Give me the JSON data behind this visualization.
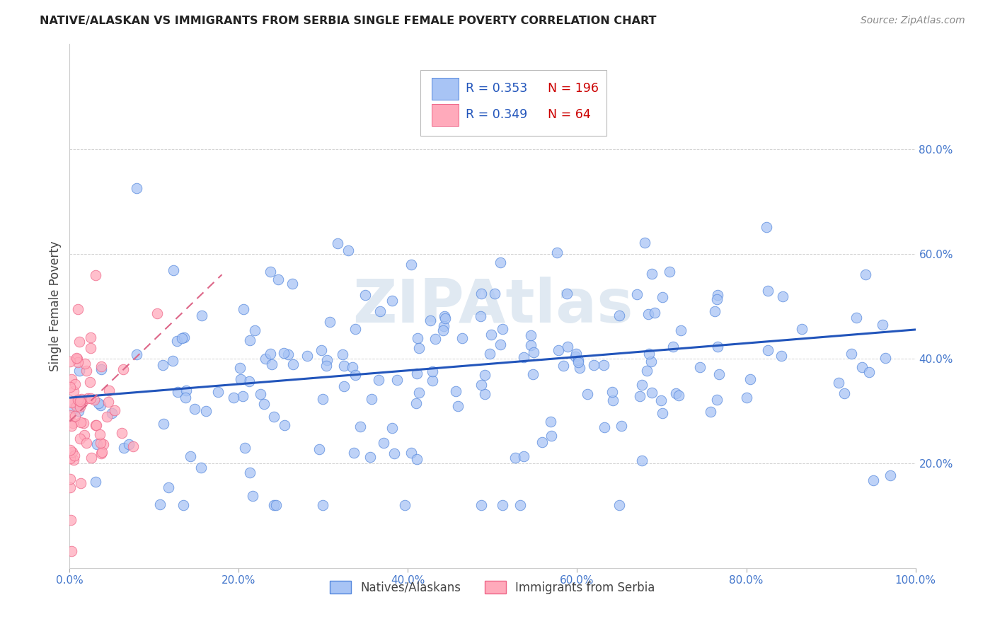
{
  "title": "NATIVE/ALASKAN VS IMMIGRANTS FROM SERBIA SINGLE FEMALE POVERTY CORRELATION CHART",
  "source": "Source: ZipAtlas.com",
  "ylabel": "Single Female Poverty",
  "xlim": [
    0,
    1.0
  ],
  "ylim": [
    0,
    1.0
  ],
  "xtick_positions": [
    0.0,
    0.2,
    0.4,
    0.6,
    0.8,
    1.0
  ],
  "ytick_positions": [
    0.0,
    0.2,
    0.4,
    0.6,
    0.8
  ],
  "xtick_labels": [
    "0.0%",
    "20.0%",
    "40.0%",
    "60.0%",
    "80.0%",
    "100.0%"
  ],
  "ytick_labels": [
    "",
    "20.0%",
    "40.0%",
    "60.0%",
    "80.0%"
  ],
  "blue_fill": "#a8c4f5",
  "blue_edge": "#5588dd",
  "pink_fill": "#ffaabb",
  "pink_edge": "#ee6688",
  "line_blue": "#2255bb",
  "line_pink": "#dd6688",
  "R_blue": 0.353,
  "N_blue": 196,
  "R_pink": 0.349,
  "N_pink": 64,
  "blue_line_x0": 0.0,
  "blue_line_y0": 0.325,
  "blue_line_x1": 1.0,
  "blue_line_y1": 0.455,
  "pink_line_x0": 0.0,
  "pink_line_y0": 0.28,
  "pink_line_x1": 0.18,
  "pink_line_y1": 0.56,
  "watermark": "ZIPAtlas",
  "legend_label_blue": "Natives/Alaskans",
  "legend_label_pink": "Immigrants from Serbia"
}
